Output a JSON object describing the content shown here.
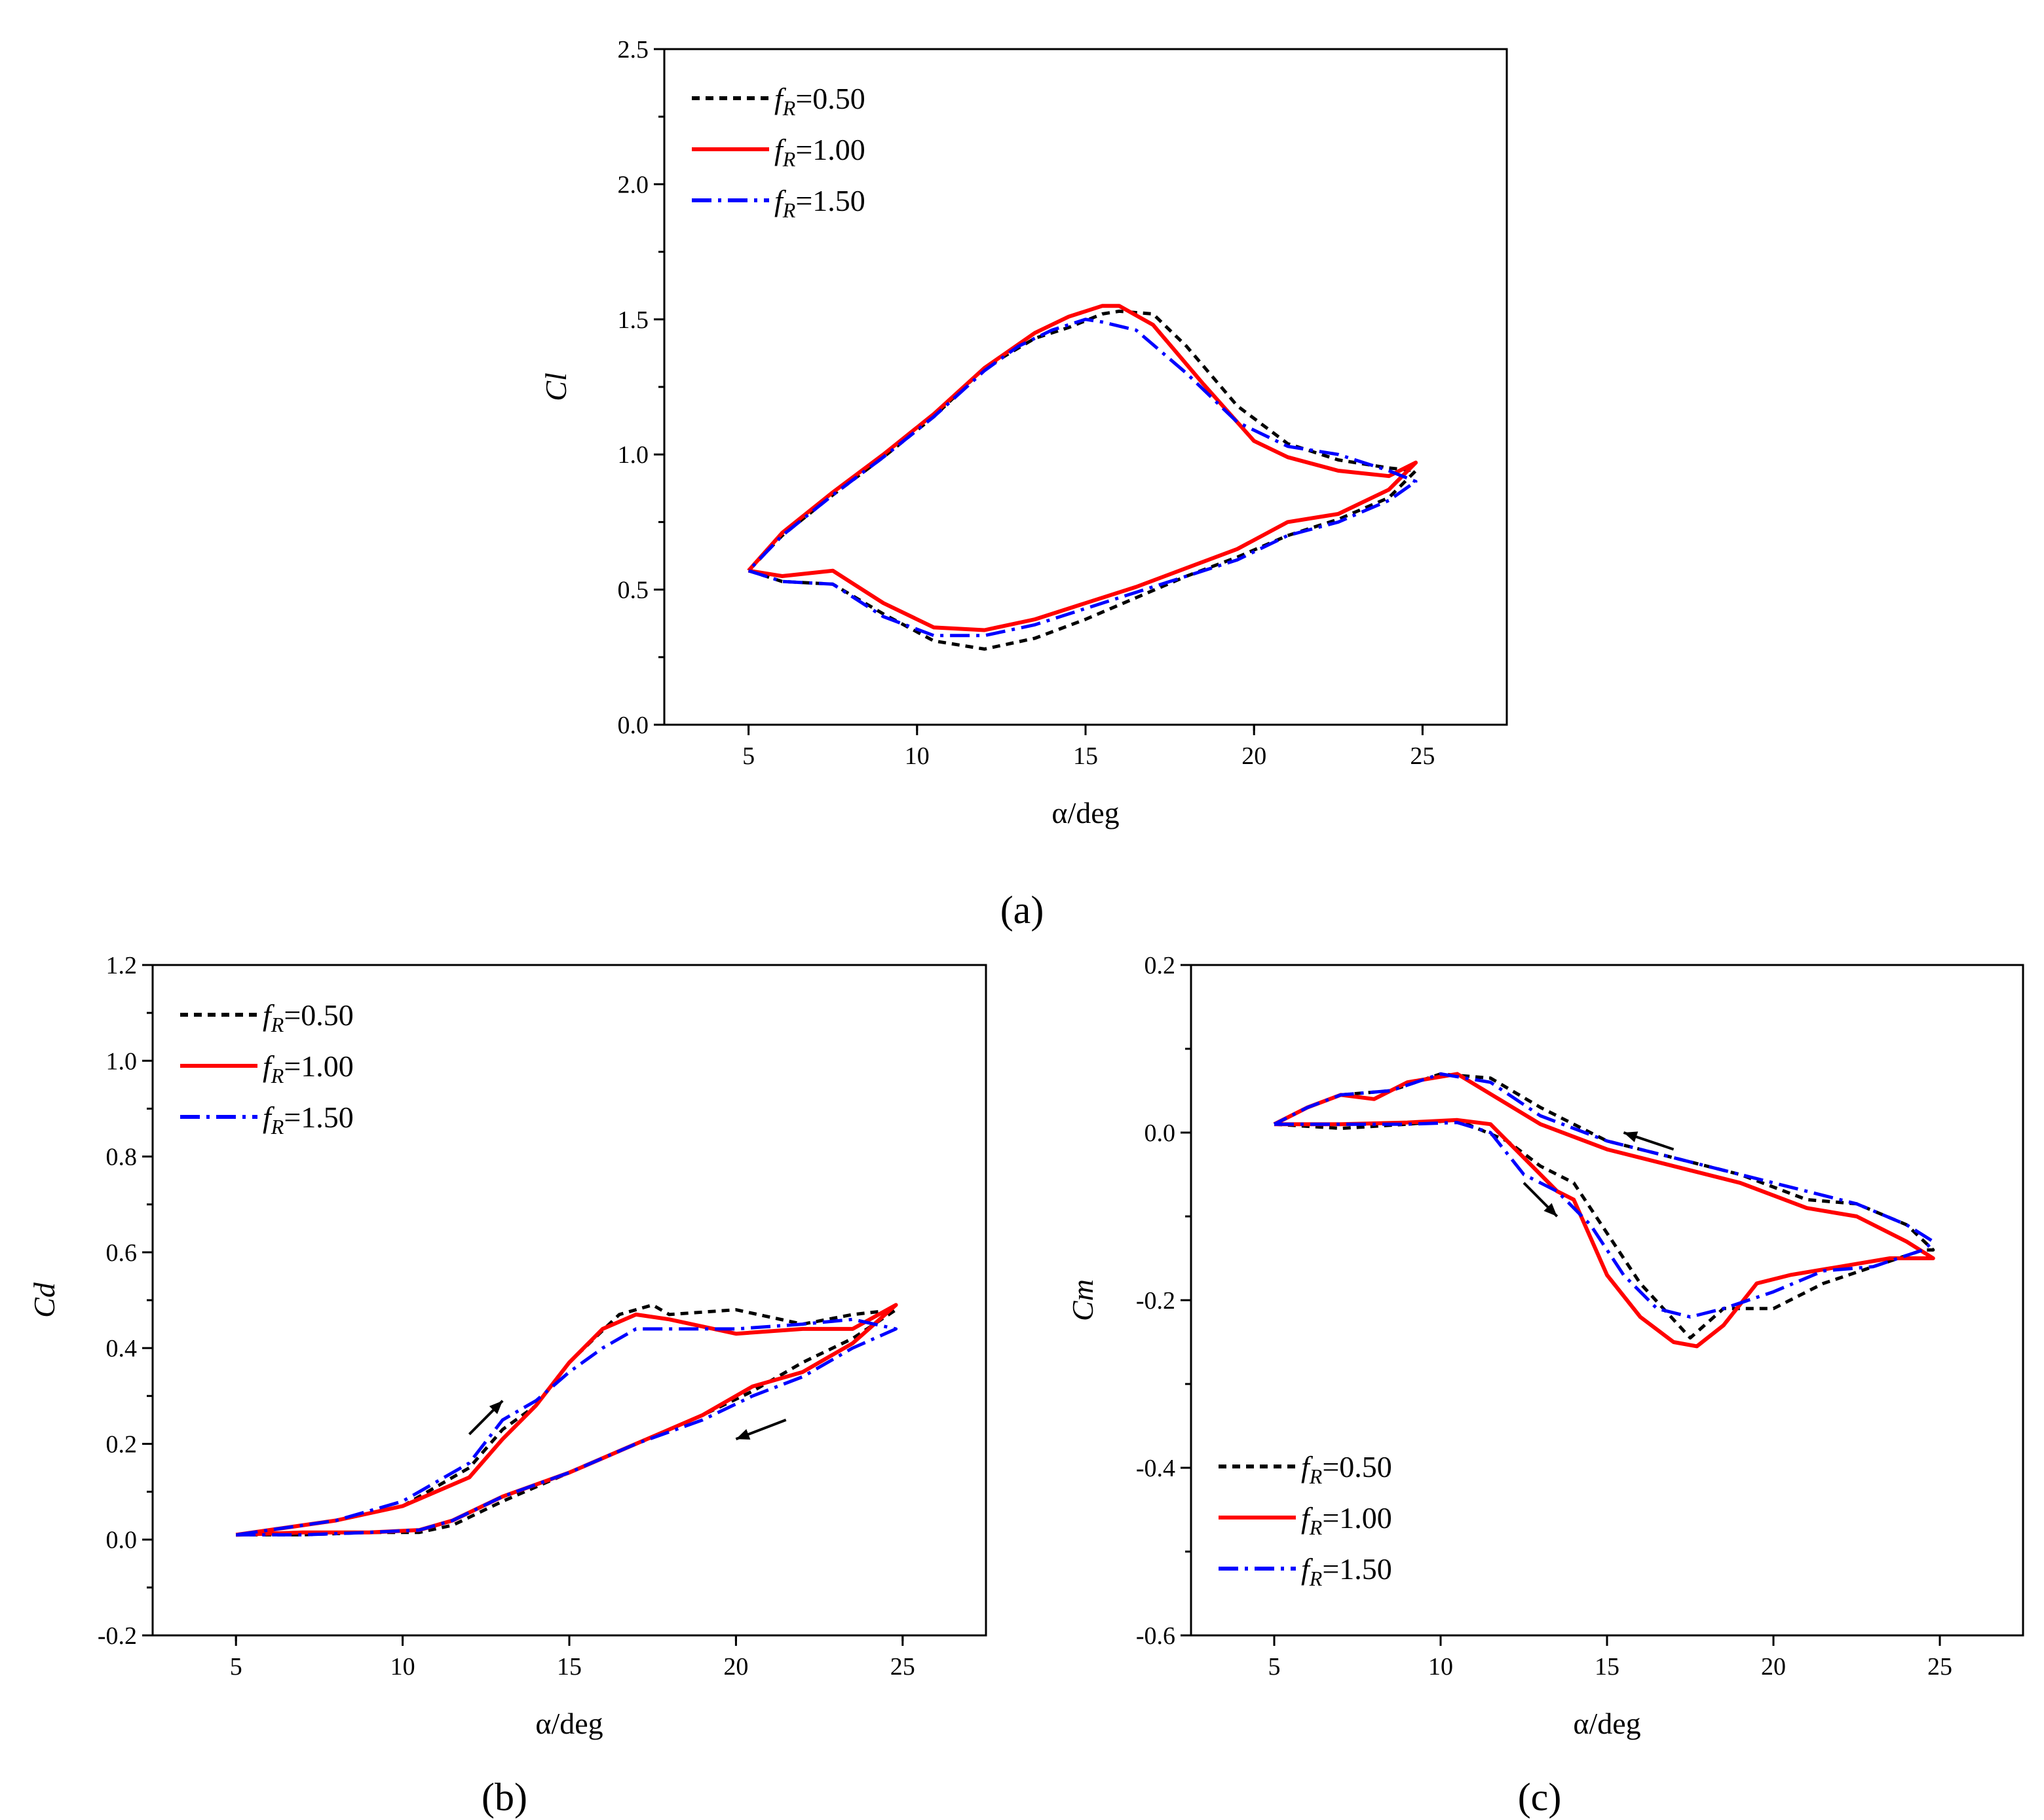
{
  "figure": {
    "panel_a_label": "(a)",
    "panel_b_label": "(b)",
    "panel_c_label": "(c)"
  },
  "chart_data": [
    {
      "id": "a",
      "type": "line",
      "title": "",
      "panel_label": "(a)",
      "xlabel": "α/deg",
      "ylabel": "Cl",
      "xlim": [
        2.5,
        27.5
      ],
      "ylim": [
        0.0,
        2.5
      ],
      "xticks": [
        5,
        10,
        15,
        20,
        25
      ],
      "yticks": [
        0.0,
        0.5,
        1.0,
        1.5,
        2.0,
        2.5
      ],
      "xtick_labels": [
        "5",
        "10",
        "15",
        "20",
        "25"
      ],
      "ytick_labels": [
        "0.0",
        "0.5",
        "1.0",
        "1.5",
        "2.0",
        "2.5"
      ],
      "legend_position": "top-left",
      "series": [
        {
          "name": "fR=0.50",
          "sub": "R",
          "value_text": "=0.50",
          "color": "#000000",
          "dash": "dot",
          "x": [
            5.0,
            6.0,
            7.5,
            9.0,
            10.5,
            12.0,
            13.5,
            15.0,
            16.5,
            18.0,
            19.5,
            21.0,
            22.5,
            24.0,
            24.8,
            24.0,
            22.5,
            21.0,
            19.5,
            18.0,
            17.0,
            16.0,
            15.5,
            14.5,
            13.5,
            12.0,
            10.5,
            9.0,
            7.5,
            6.0,
            5.0
          ],
          "y": [
            0.57,
            0.53,
            0.52,
            0.41,
            0.31,
            0.28,
            0.32,
            0.39,
            0.47,
            0.55,
            0.62,
            0.7,
            0.76,
            0.84,
            0.94,
            0.95,
            0.98,
            1.04,
            1.18,
            1.4,
            1.52,
            1.53,
            1.52,
            1.47,
            1.43,
            1.32,
            1.14,
            0.99,
            0.85,
            0.7,
            0.57
          ]
        },
        {
          "name": "fR=1.00",
          "sub": "R",
          "value_text": "=1.00",
          "color": "#ff0000",
          "dash": "solid",
          "x": [
            5.0,
            6.0,
            7.5,
            9.0,
            10.5,
            12.0,
            13.5,
            15.0,
            16.5,
            18.0,
            19.5,
            21.0,
            22.5,
            24.0,
            24.8,
            24.0,
            22.5,
            21.0,
            20.0,
            18.5,
            17.0,
            16.0,
            15.5,
            14.5,
            13.5,
            12.0,
            10.5,
            9.0,
            7.5,
            6.0,
            5.0
          ],
          "y": [
            0.57,
            0.55,
            0.57,
            0.45,
            0.36,
            0.35,
            0.39,
            0.45,
            0.51,
            0.58,
            0.65,
            0.75,
            0.78,
            0.87,
            0.97,
            0.92,
            0.94,
            0.99,
            1.05,
            1.26,
            1.48,
            1.55,
            1.55,
            1.51,
            1.45,
            1.32,
            1.15,
            1.0,
            0.86,
            0.71,
            0.57
          ]
        },
        {
          "name": "fR=1.50",
          "sub": "R",
          "value_text": "=1.50",
          "color": "#0000ff",
          "dash": "dashdot",
          "x": [
            5.0,
            6.0,
            7.5,
            9.0,
            10.5,
            12.0,
            13.5,
            15.0,
            16.5,
            18.0,
            19.5,
            21.0,
            22.5,
            24.0,
            24.8,
            24.0,
            22.5,
            21.0,
            19.5,
            18.0,
            16.5,
            15.5,
            15.0,
            14.0,
            13.0,
            12.0,
            10.5,
            9.0,
            7.5,
            6.0,
            5.0
          ],
          "y": [
            0.57,
            0.53,
            0.52,
            0.4,
            0.33,
            0.33,
            0.37,
            0.43,
            0.49,
            0.55,
            0.61,
            0.7,
            0.75,
            0.83,
            0.9,
            0.94,
            1.0,
            1.03,
            1.12,
            1.3,
            1.46,
            1.49,
            1.5,
            1.46,
            1.4,
            1.31,
            1.14,
            0.99,
            0.85,
            0.7,
            0.57
          ]
        }
      ]
    },
    {
      "id": "b",
      "type": "line",
      "title": "",
      "panel_label": "(b)",
      "xlabel": "α/deg",
      "ylabel": "Cd",
      "xlim": [
        2.5,
        27.5
      ],
      "ylim": [
        -0.2,
        1.2
      ],
      "xticks": [
        5,
        10,
        15,
        20,
        25
      ],
      "yticks": [
        -0.2,
        0.0,
        0.2,
        0.4,
        0.6,
        0.8,
        1.0,
        1.2
      ],
      "xtick_labels": [
        "5",
        "10",
        "15",
        "20",
        "25"
      ],
      "ytick_labels": [
        "-0.2",
        "0.0",
        "0.2",
        "0.4",
        "0.6",
        "0.8",
        "1.0",
        "1.2"
      ],
      "legend_position": "top-left",
      "series": [
        {
          "name": "fR=0.50",
          "sub": "R",
          "value_text": "=0.50",
          "color": "#000000",
          "dash": "dot",
          "x": [
            5.0,
            7.0,
            9.0,
            10.5,
            11.5,
            13.0,
            15.0,
            17.0,
            19.0,
            20.5,
            22.0,
            23.5,
            24.8,
            23.5,
            22.0,
            20.0,
            18.0,
            17.5,
            16.5,
            15.0,
            14.0,
            13.0,
            12.0,
            10.0,
            8.0,
            6.0,
            5.0
          ],
          "y": [
            0.01,
            0.01,
            0.015,
            0.015,
            0.03,
            0.08,
            0.14,
            0.2,
            0.26,
            0.31,
            0.37,
            0.42,
            0.48,
            0.47,
            0.45,
            0.48,
            0.47,
            0.49,
            0.47,
            0.37,
            0.28,
            0.23,
            0.15,
            0.07,
            0.04,
            0.02,
            0.01
          ]
        },
        {
          "name": "fR=1.00",
          "sub": "R",
          "value_text": "=1.00",
          "color": "#ff0000",
          "dash": "solid",
          "x": [
            5.0,
            7.0,
            9.0,
            10.5,
            11.5,
            13.0,
            15.0,
            17.0,
            19.0,
            20.5,
            22.0,
            23.5,
            24.8,
            23.5,
            22.0,
            20.0,
            18.0,
            17.0,
            16.0,
            15.0,
            14.0,
            13.0,
            12.0,
            10.0,
            8.0,
            6.0,
            5.0
          ],
          "y": [
            0.01,
            0.015,
            0.015,
            0.02,
            0.04,
            0.09,
            0.14,
            0.2,
            0.26,
            0.32,
            0.35,
            0.41,
            0.49,
            0.44,
            0.44,
            0.43,
            0.46,
            0.47,
            0.44,
            0.37,
            0.28,
            0.21,
            0.13,
            0.07,
            0.04,
            0.02,
            0.01
          ]
        },
        {
          "name": "fR=1.50",
          "sub": "R",
          "value_text": "=1.50",
          "color": "#0000ff",
          "dash": "dashdot",
          "x": [
            5.0,
            7.0,
            9.0,
            10.5,
            11.5,
            13.0,
            15.0,
            17.0,
            19.0,
            20.5,
            22.0,
            23.5,
            24.8,
            23.5,
            22.0,
            20.0,
            18.0,
            17.0,
            16.0,
            15.0,
            14.0,
            13.0,
            12.0,
            10.0,
            8.0,
            6.0,
            5.0
          ],
          "y": [
            0.01,
            0.01,
            0.015,
            0.02,
            0.04,
            0.09,
            0.14,
            0.2,
            0.25,
            0.3,
            0.34,
            0.4,
            0.44,
            0.46,
            0.45,
            0.44,
            0.44,
            0.44,
            0.4,
            0.35,
            0.29,
            0.25,
            0.16,
            0.08,
            0.04,
            0.02,
            0.01
          ]
        }
      ],
      "annotations": [
        {
          "type": "arrow",
          "from": [
            12.0,
            0.22
          ],
          "to": [
            13.0,
            0.29
          ]
        },
        {
          "type": "arrow",
          "from": [
            21.5,
            0.25
          ],
          "to": [
            20.0,
            0.21
          ]
        }
      ]
    },
    {
      "id": "c",
      "type": "line",
      "title": "",
      "panel_label": "(c)",
      "xlabel": "α/deg",
      "ylabel": "Cm",
      "xlim": [
        2.5,
        27.5
      ],
      "ylim": [
        -0.6,
        0.2
      ],
      "xticks": [
        5,
        10,
        15,
        20,
        25
      ],
      "yticks": [
        -0.6,
        -0.4,
        -0.2,
        0.0,
        0.2
      ],
      "xtick_labels": [
        "5",
        "10",
        "15",
        "20",
        "25"
      ],
      "ytick_labels": [
        "-0.6",
        "-0.4",
        "-0.2",
        "0.0",
        "0.2"
      ],
      "legend_position": "bottom-left",
      "series": [
        {
          "name": "fR=0.50",
          "sub": "R",
          "value_text": "=0.50",
          "color": "#000000",
          "dash": "dot",
          "x": [
            5.0,
            7.0,
            9.0,
            10.5,
            12.0,
            13.0,
            14.0,
            15.0,
            16.0,
            17.5,
            18.5,
            20.0,
            21.5,
            23.0,
            24.5,
            24.8,
            24.0,
            22.5,
            21.0,
            19.0,
            17.0,
            15.0,
            13.0,
            11.5,
            10.0,
            8.5,
            7.0,
            6.0,
            5.0
          ],
          "y": [
            0.01,
            0.005,
            0.01,
            0.015,
            -0.01,
            -0.04,
            -0.06,
            -0.12,
            -0.18,
            -0.245,
            -0.21,
            -0.21,
            -0.18,
            -0.16,
            -0.14,
            -0.14,
            -0.11,
            -0.085,
            -0.08,
            -0.05,
            -0.03,
            -0.01,
            0.03,
            0.065,
            0.07,
            0.05,
            0.045,
            0.03,
            0.01
          ]
        },
        {
          "name": "fR=1.00",
          "sub": "R",
          "value_text": "=1.00",
          "color": "#ff0000",
          "dash": "solid",
          "x": [
            5.0,
            7.0,
            9.0,
            10.5,
            11.5,
            12.5,
            13.0,
            13.5,
            14.0,
            15.0,
            16.0,
            17.0,
            17.7,
            18.5,
            19.5,
            20.5,
            22.0,
            23.5,
            24.8,
            24.0,
            22.5,
            21.0,
            19.0,
            17.0,
            15.0,
            13.0,
            10.5,
            9.0,
            8.0,
            7.0,
            6.0,
            5.0
          ],
          "y": [
            0.01,
            0.01,
            0.012,
            0.015,
            0.01,
            -0.03,
            -0.05,
            -0.07,
            -0.08,
            -0.17,
            -0.22,
            -0.25,
            -0.255,
            -0.23,
            -0.18,
            -0.17,
            -0.16,
            -0.15,
            -0.15,
            -0.13,
            -0.1,
            -0.09,
            -0.06,
            -0.04,
            -0.02,
            0.01,
            0.07,
            0.06,
            0.04,
            0.045,
            0.03,
            0.01
          ]
        },
        {
          "name": "fR=1.50",
          "sub": "R",
          "value_text": "=1.50",
          "color": "#0000ff",
          "dash": "dashdot",
          "x": [
            5.0,
            7.0,
            9.0,
            10.5,
            11.5,
            12.5,
            13.0,
            13.5,
            14.5,
            15.5,
            16.5,
            17.5,
            18.5,
            20.0,
            21.5,
            23.0,
            24.5,
            24.8,
            24.0,
            22.5,
            21.0,
            19.0,
            17.0,
            15.0,
            13.0,
            11.5,
            10.0,
            8.5,
            7.0,
            6.0,
            5.0
          ],
          "y": [
            0.01,
            0.01,
            0.01,
            0.012,
            0.0,
            -0.05,
            -0.06,
            -0.07,
            -0.11,
            -0.17,
            -0.21,
            -0.22,
            -0.21,
            -0.19,
            -0.165,
            -0.16,
            -0.14,
            -0.13,
            -0.11,
            -0.085,
            -0.07,
            -0.05,
            -0.03,
            -0.01,
            0.02,
            0.06,
            0.07,
            0.05,
            0.045,
            0.03,
            0.01
          ]
        }
      ],
      "annotations": [
        {
          "type": "arrow",
          "from": [
            17.0,
            -0.02
          ],
          "to": [
            15.5,
            0.0
          ]
        },
        {
          "type": "arrow",
          "from": [
            12.5,
            -0.06
          ],
          "to": [
            13.5,
            -0.1
          ]
        }
      ]
    }
  ]
}
